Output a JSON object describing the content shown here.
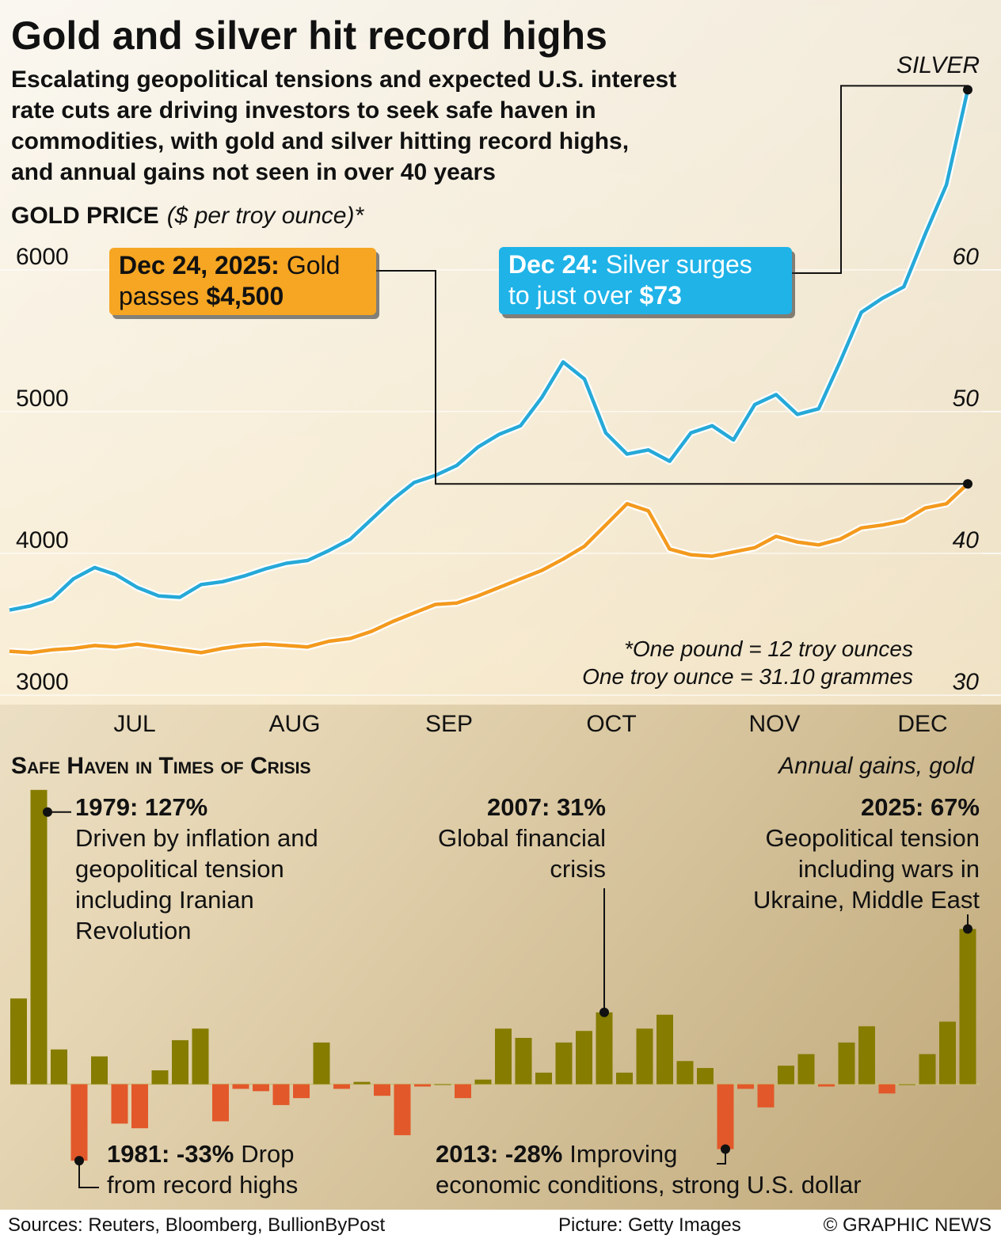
{
  "header": {
    "title": "Gold and silver hit record highs",
    "subtitle_lines": [
      "Escalating geopolitical tensions and expected U.S. interest",
      "rate cuts are driving investors to seek safe haven in",
      "commodities, with gold and silver hitting record highs,",
      "and annual gains not seen in over 40 years"
    ]
  },
  "chart_data": [
    {
      "type": "line",
      "y_label": "GOLD PRICE",
      "y_unit": "($ per troy ounce)*",
      "x_labels": [
        "JUL",
        "AUG",
        "SEP",
        "OCT",
        "NOV",
        "DEC"
      ],
      "ylim": [
        2900,
        7300
      ],
      "yticks": [
        3000,
        4000,
        5000,
        6000
      ],
      "y2lim": [
        29,
        73
      ],
      "y2ticks": [
        30,
        40,
        50,
        60
      ],
      "grid": true,
      "series": [
        {
          "name": "GOLD",
          "color": "#f39a1e",
          "values": [
            3310,
            3300,
            3320,
            3330,
            3350,
            3340,
            3360,
            3340,
            3320,
            3300,
            3330,
            3350,
            3360,
            3350,
            3340,
            3380,
            3400,
            3450,
            3520,
            3580,
            3640,
            3650,
            3700,
            3760,
            3820,
            3880,
            3960,
            4050,
            4200,
            4350,
            4300,
            4030,
            3990,
            3980,
            4010,
            4040,
            4120,
            4080,
            4060,
            4100,
            4180,
            4200,
            4230,
            4320,
            4350,
            4490
          ]
        },
        {
          "name": "SILVER",
          "color": "#26a9d8",
          "axis": "y2",
          "values": [
            36,
            36.3,
            36.8,
            38.2,
            39,
            38.5,
            37.6,
            37,
            36.9,
            37.8,
            38,
            38.4,
            38.9,
            39.3,
            39.5,
            40.2,
            41,
            42.4,
            43.8,
            45,
            45.5,
            46.2,
            47.5,
            48.4,
            49,
            51,
            53.5,
            52.3,
            48.5,
            47,
            47.3,
            46.5,
            48.5,
            49,
            48,
            50.5,
            51.2,
            49.8,
            50.2,
            53.5,
            57,
            58,
            58.8,
            62.5,
            66,
            72.7
          ]
        }
      ],
      "callouts": [
        {
          "date": "Dec 24, 2025:",
          "text_lines": [
            "Gold",
            "passes"
          ],
          "value": "$4,500",
          "color": "#f6a623"
        },
        {
          "date": "Dec 24:",
          "text_lines": [
            "Silver surges",
            "to just over"
          ],
          "value": "$73",
          "color": "#1fb3e8"
        }
      ],
      "footnotes": [
        "*One pound = 12 troy ounces",
        "One troy ounce = 31.10 grammes"
      ]
    },
    {
      "type": "bar",
      "title": "Safe Haven in Times of Crisis",
      "subtitle": "Annual gains, gold",
      "categories": [
        null,
        null,
        null,
        null,
        null,
        null,
        null,
        null,
        null,
        null,
        null,
        null,
        null,
        null,
        null,
        null,
        null,
        null,
        null,
        null,
        null,
        null,
        null,
        null,
        null,
        null,
        null,
        null,
        null,
        null,
        null,
        null,
        null,
        null,
        null,
        null,
        null,
        null,
        null,
        null,
        null,
        null,
        null,
        null,
        null,
        null,
        null,
        null
      ],
      "values": [
        37,
        127,
        15,
        -33,
        12,
        -17,
        -19,
        6,
        19,
        24,
        -16,
        -2,
        -3,
        -9,
        -6,
        18,
        -2,
        1,
        -5,
        -22,
        -1,
        0,
        -6,
        2,
        24,
        20,
        5,
        18,
        23,
        31,
        5,
        24,
        30,
        10,
        7,
        -28,
        -2,
        -10,
        8,
        13,
        -1,
        18,
        25,
        -4,
        0,
        13,
        27,
        67
      ],
      "ylim": [
        -35,
        130
      ],
      "positive_color": "#857c00",
      "negative_color": "#e2582a",
      "annotations": [
        {
          "head": "1979: 127%",
          "lines": [
            "Driven by inflation and",
            "geopolitical tension",
            "including Iranian",
            "Revolution"
          ]
        },
        {
          "head": "2007: 31%",
          "lines": [
            "Global financial",
            "crisis"
          ]
        },
        {
          "head": "2025: 67%",
          "lines": [
            "Geopolitical tension",
            "including wars in",
            "Ukraine, Middle East"
          ]
        },
        {
          "head": "1981: -33%",
          "lines": [
            "Drop",
            "from record highs"
          ]
        },
        {
          "head": "2013: -28%",
          "lines": [
            "Improving",
            "economic conditions, strong U.S. dollar"
          ]
        }
      ]
    }
  ],
  "footer": {
    "sources": "Sources: Reuters, Bloomberg, BullionByPost",
    "picture": "Picture: Getty Images",
    "copyright": "© GRAPHIC NEWS"
  }
}
